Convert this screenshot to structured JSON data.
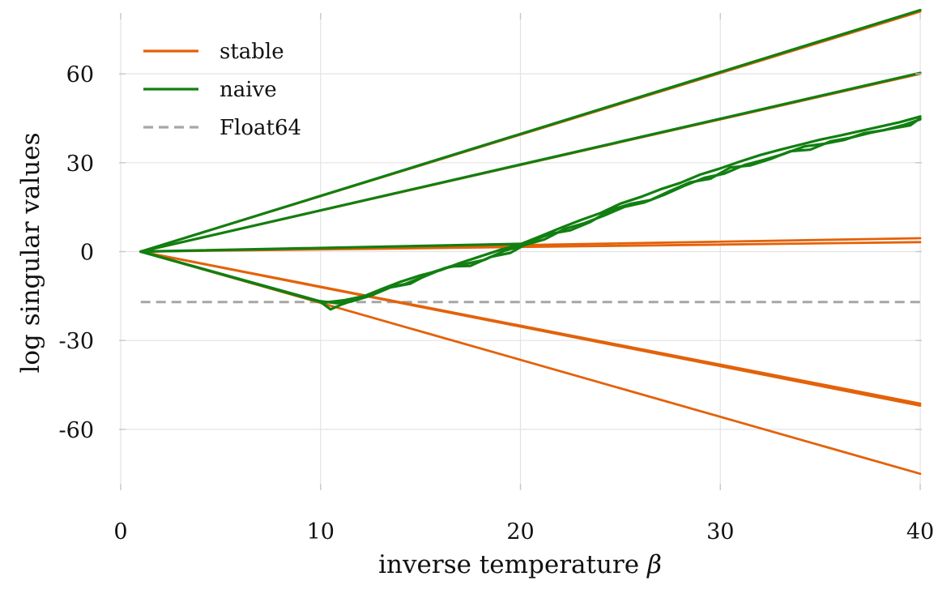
{
  "chart_data": {
    "type": "line",
    "title": "",
    "xlabel": "inverse temperature",
    "xlabel_symbol": "β",
    "ylabel": "log singular values",
    "xlim": [
      0,
      40
    ],
    "ylim": [
      -80,
      80
    ],
    "xticks": [
      0,
      10,
      20,
      30,
      40
    ],
    "xtick_labels": [
      "0",
      "10",
      "20",
      "30",
      "40"
    ],
    "yticks": [
      60,
      30,
      0,
      -30,
      -60
    ],
    "ytick_labels": [
      "60",
      "30",
      "0",
      "-30",
      "-60"
    ],
    "grid": true,
    "legend_position": "top-left",
    "legend": [
      {
        "label": "stable",
        "color": "#e36209",
        "style": "solid"
      },
      {
        "label": "naive",
        "color": "#117f11",
        "style": "solid"
      },
      {
        "label": "Float64",
        "color": "#a6a6a6",
        "style": "dashed"
      }
    ],
    "colors": {
      "stable": "#e36209",
      "naive": "#117f11",
      "float64": "#a6a6a6"
    },
    "series": [
      {
        "name": "stable",
        "x": [
          1,
          40
        ],
        "y": [
          0,
          81
        ]
      },
      {
        "name": "stable",
        "x": [
          1,
          40
        ],
        "y": [
          0,
          60
        ]
      },
      {
        "name": "stable",
        "x": [
          1,
          40
        ],
        "y": [
          0,
          4.5
        ]
      },
      {
        "name": "stable",
        "x": [
          1,
          40
        ],
        "y": [
          0,
          3.2
        ]
      },
      {
        "name": "stable",
        "x": [
          1,
          40
        ],
        "y": [
          0,
          -52
        ]
      },
      {
        "name": "stable",
        "x": [
          1,
          40
        ],
        "y": [
          0,
          -51.3
        ]
      },
      {
        "name": "stable",
        "x": [
          1,
          40
        ],
        "y": [
          0,
          -75
        ]
      },
      {
        "name": "naive",
        "x": [
          1,
          40
        ],
        "y": [
          0,
          81.5
        ]
      },
      {
        "name": "naive",
        "x": [
          1,
          40
        ],
        "y": [
          0,
          60.3
        ]
      },
      {
        "name": "naive",
        "x": [
          1,
          20
        ],
        "y": [
          0,
          2.6
        ]
      },
      {
        "name": "naive",
        "x": [
          1,
          10,
          10.5,
          11,
          12,
          13,
          14,
          15,
          16,
          17,
          18,
          19,
          20,
          21,
          22,
          23,
          24,
          25,
          26,
          27,
          28,
          29,
          30,
          31,
          32,
          33,
          34,
          35,
          36,
          37,
          38,
          39,
          40
        ],
        "y": [
          0,
          -17.0,
          -19.5,
          -18.0,
          -15.6,
          -12.8,
          -10.2,
          -8.0,
          -6.3,
          -3.8,
          -1.6,
          0.6,
          2.5,
          5.2,
          8.0,
          10.6,
          13.0,
          16.2,
          18.4,
          21.0,
          23.2,
          26.0,
          28.1,
          30.4,
          32.6,
          34.4,
          36.1,
          37.8,
          39.2,
          40.7,
          42.2,
          43.7,
          45.6
        ]
      },
      {
        "name": "naive",
        "x": [
          1,
          9.8,
          10.8,
          11.5,
          12.5,
          13.5,
          14.5,
          15.5,
          16.5,
          17.5,
          18.5,
          19.5,
          20.5,
          21.5,
          22.5,
          23.5,
          24.5,
          25.5,
          26.5,
          27.5,
          28.5,
          29.5,
          30.5,
          31.5,
          32.5,
          33.5,
          34.5,
          35.5,
          36.5,
          37.5,
          38.5,
          39.5,
          40
        ],
        "y": [
          0,
          -16.6,
          -17.4,
          -16.9,
          -14.9,
          -12.1,
          -10.8,
          -7.2,
          -5.0,
          -4.8,
          -1.8,
          -0.4,
          3.4,
          6.0,
          7.2,
          10.0,
          14.0,
          16.1,
          17.4,
          20.5,
          23.4,
          24.6,
          28.4,
          29.1,
          31.2,
          33.9,
          34.4,
          37.2,
          38.4,
          40.1,
          41.4,
          42.6,
          45.0
        ]
      },
      {
        "name": "naive",
        "x": [
          1,
          10.2,
          11.2,
          12.2,
          13.2,
          14.2,
          15.2,
          16.2,
          17.2,
          18.2,
          19.2,
          20.2,
          21.2,
          22.2,
          23.2,
          24.2,
          25.2,
          26.2,
          27.2,
          28.2,
          29.2,
          30.2,
          31.2,
          32.2,
          33.2,
          34.2,
          35.2,
          36.2,
          37.2,
          38.2,
          39.2,
          40
        ],
        "y": [
          0,
          -17.2,
          -16.4,
          -15.0,
          -12.3,
          -11.0,
          -8.4,
          -5.6,
          -4.2,
          -2.8,
          0.3,
          2.2,
          4.1,
          7.6,
          9.6,
          12.2,
          15.1,
          16.6,
          19.2,
          22.2,
          24.9,
          26.3,
          29.2,
          31.0,
          33.0,
          35.5,
          36.4,
          37.7,
          40.0,
          41.0,
          42.8,
          44.6
        ]
      },
      {
        "name": "Float64",
        "x": [
          1,
          40
        ],
        "y": [
          -17,
          -17
        ]
      }
    ]
  }
}
